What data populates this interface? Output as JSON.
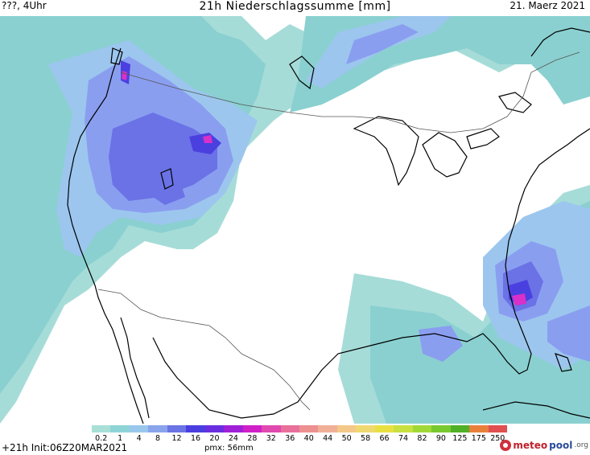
{
  "header": {
    "left": "???, 4Uhr",
    "title": "21h Niederschlagssumme [mm]",
    "date": "21. Maerz 2021"
  },
  "footer": {
    "forecast": "+21h Init:06Z20MAR2021",
    "pmx": "pmx: 56mm",
    "brand_part1": "meteo",
    "brand_part2": "pool",
    "brand_suffix": ".org"
  },
  "legend": {
    "levels": [
      "0.2",
      "1",
      "4",
      "8",
      "12",
      "16",
      "20",
      "24",
      "28",
      "32",
      "36",
      "40",
      "44",
      "50",
      "58",
      "66",
      "74",
      "82",
      "90",
      "125",
      "175",
      "250"
    ],
    "colors": [
      "#a8e0d8",
      "#8ed4d6",
      "#9ac8ec",
      "#8aa4ec",
      "#6a74e4",
      "#4a3ee0",
      "#6a2ee0",
      "#a020d8",
      "#d020c8",
      "#e04ab0",
      "#e8709a",
      "#ec9090",
      "#f0b098",
      "#f4c888",
      "#f0d870",
      "#e8e040",
      "#c8e040",
      "#a0d838",
      "#78c830",
      "#50b028",
      "#e8803c",
      "#e05050"
    ]
  },
  "map": {
    "colors": {
      "light": "#a6dcd8",
      "teal": "#8ad0d0",
      "lblue": "#9cc6ee",
      "blue": "#8a9ef0",
      "dblue": "#6a72e6",
      "indigo": "#4a40e0",
      "magenta": "#d830c8",
      "coast": "#000000",
      "border": "#555555"
    }
  }
}
